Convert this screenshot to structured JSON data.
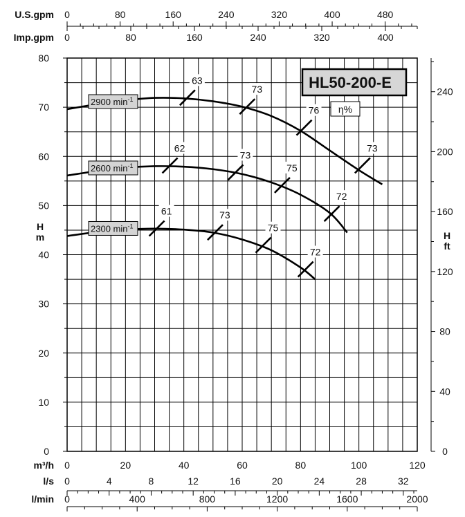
{
  "chart_data": {
    "type": "line",
    "model": "HL50-200-E",
    "eta_label": "η%",
    "x_axis": {
      "unit": "m³/h",
      "range": [
        0,
        120
      ],
      "ticks": [
        "0",
        "20",
        "40",
        "60",
        "80",
        "100",
        "120"
      ]
    },
    "secondary_x_axes": [
      {
        "unit": "U.S.gpm",
        "position": "top",
        "range": [
          0,
          528.4
        ],
        "ticks": [
          0,
          80,
          160,
          240,
          320,
          400,
          480
        ]
      },
      {
        "unit": "Imp.gpm",
        "position": "top",
        "range": [
          0,
          440
        ],
        "ticks": [
          0,
          80,
          160,
          240,
          320,
          400
        ]
      },
      {
        "unit": "l/s",
        "position": "bottom",
        "range": [
          0,
          33.33
        ],
        "ticks": [
          0,
          4,
          8,
          12,
          16,
          20,
          24,
          28,
          32
        ]
      },
      {
        "unit": "l/min",
        "position": "bottom",
        "range": [
          0,
          2000
        ],
        "ticks": [
          0,
          400,
          800,
          1200,
          1600,
          2000
        ]
      }
    ],
    "y_axis": {
      "label": "H",
      "unit": "m",
      "range": [
        0,
        80
      ],
      "ticks": [
        "0",
        "10",
        "20",
        "30",
        "40",
        "50",
        "60",
        "70",
        "80"
      ]
    },
    "secondary_y_axis": {
      "label": "H",
      "unit": "ft",
      "position": "right",
      "ticks": [
        0,
        40,
        80,
        120,
        160,
        200,
        240
      ]
    },
    "grid": true,
    "series": [
      {
        "name": "2900 min-1",
        "speed_value": "2900 min",
        "speed_exp": "-1",
        "x": [
          0,
          10,
          20,
          30,
          40,
          50,
          60,
          70,
          80,
          90,
          100,
          108
        ],
        "y": [
          69.6,
          70.6,
          71.4,
          71.9,
          71.8,
          71.2,
          70.1,
          68.2,
          65.2,
          61.2,
          57.2,
          54.3
        ],
        "efficiency_marks": [
          {
            "label": "63",
            "x": 41,
            "y": 71.8
          },
          {
            "label": "73",
            "x": 61.5,
            "y": 70.0
          },
          {
            "label": "76",
            "x": 81,
            "y": 65.7
          },
          {
            "label": "73",
            "x": 101,
            "y": 58.0
          }
        ]
      },
      {
        "name": "2600 min-1",
        "speed_value": "2600 min",
        "speed_exp": "-1",
        "x": [
          0,
          10,
          20,
          30,
          40,
          50,
          60,
          70,
          80,
          90,
          96
        ],
        "y": [
          56.1,
          57.0,
          57.7,
          58.0,
          57.9,
          57.4,
          56.4,
          54.7,
          52.2,
          48.5,
          44.5
        ],
        "efficiency_marks": [
          {
            "label": "62",
            "x": 35,
            "y": 58.0
          },
          {
            "label": "73",
            "x": 57.5,
            "y": 56.6
          },
          {
            "label": "75",
            "x": 73.5,
            "y": 54.0
          },
          {
            "label": "72",
            "x": 90.5,
            "y": 48.2
          }
        ]
      },
      {
        "name": "2300 min-1",
        "speed_value": "2300 min",
        "speed_exp": "-1",
        "x": [
          0,
          10,
          20,
          30,
          40,
          50,
          60,
          70,
          80,
          85
        ],
        "y": [
          43.8,
          44.6,
          45.1,
          45.3,
          45.1,
          44.5,
          43.1,
          40.9,
          37.4,
          35.0
        ],
        "efficiency_marks": [
          {
            "label": "61",
            "x": 30.5,
            "y": 45.2
          },
          {
            "label": "73",
            "x": 50.5,
            "y": 44.4
          },
          {
            "label": "75",
            "x": 67,
            "y": 41.8
          },
          {
            "label": "72",
            "x": 81.5,
            "y": 36.9
          }
        ]
      }
    ]
  }
}
